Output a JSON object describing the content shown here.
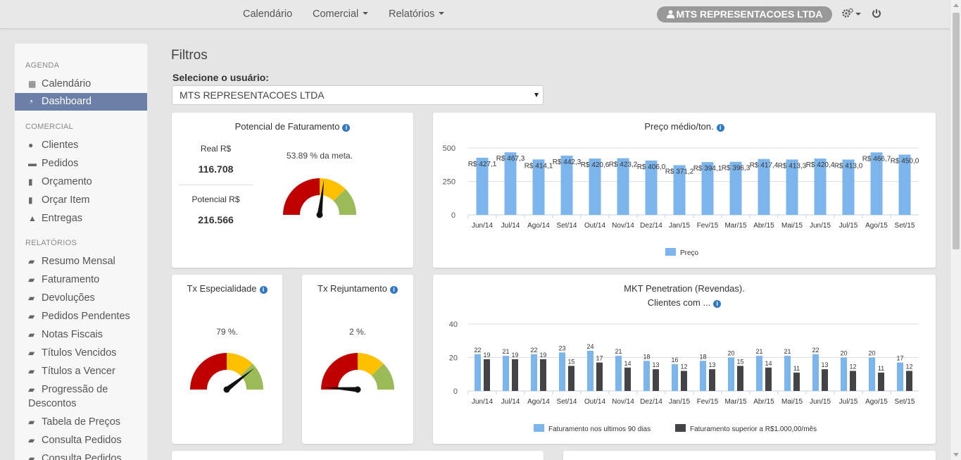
{
  "topbar": {
    "nav": [
      "Calendário",
      "Comercial",
      "Relatórios"
    ],
    "user": "MTS REPRESENTACOES LTDA",
    "icons": [
      "gears-icon",
      "power-icon"
    ]
  },
  "sidebar": {
    "sections": [
      {
        "title": "AGENDA",
        "items": [
          {
            "label": "Calendário",
            "icon": "calendar-icon"
          },
          {
            "label": "Dashboard",
            "icon": "dashboard-icon",
            "active": true
          }
        ]
      },
      {
        "title": "COMERCIAL",
        "items": [
          {
            "label": "Clientes",
            "icon": "user-icon"
          },
          {
            "label": "Pedidos",
            "icon": "cart-icon"
          },
          {
            "label": "Orçamento",
            "icon": "file-icon"
          },
          {
            "label": "Orçar Item",
            "icon": "file-icon"
          },
          {
            "label": "Entregas",
            "icon": "road-icon"
          }
        ]
      },
      {
        "title": "RELATÓRIOS",
        "items": [
          {
            "label": "Resumo Mensal",
            "icon": "book-icon"
          },
          {
            "label": "Faturamento",
            "icon": "book-icon"
          },
          {
            "label": "Devoluções",
            "icon": "book-icon"
          },
          {
            "label": "Pedidos Pendentes",
            "icon": "book-icon"
          },
          {
            "label": "Notas Fiscais",
            "icon": "book-icon"
          },
          {
            "label": "Títulos Vencidos",
            "icon": "book-icon"
          },
          {
            "label": "Títulos a Vencer",
            "icon": "book-icon"
          },
          {
            "label": "Progressão de Descontos",
            "icon": "book-icon"
          },
          {
            "label": "Tabela de Preços",
            "icon": "book-icon"
          },
          {
            "label": "Consulta Pedidos",
            "icon": "book-icon"
          },
          {
            "label": "Consulta Pedidos",
            "icon": "book-icon"
          }
        ]
      }
    ]
  },
  "main": {
    "title": "Filtros",
    "select_label": "Selecione o usuário:",
    "select_value": "MTS REPRESENTACOES LTDA"
  },
  "potencial": {
    "title": "Potencial de Faturamento",
    "real_label": "Real R$",
    "real_value": "116.708",
    "potencial_label": "Potencial R$",
    "potencial_value": "216.566",
    "meta_text": "53.89 % da meta.",
    "gauge_value": 53.89
  },
  "especialidade": {
    "title": "Tx Especialidade",
    "pct_text": "79 %.",
    "gauge_value": 79
  },
  "rejuntamento": {
    "title": "Tx Rejuntamento",
    "pct_text": "2 %.",
    "gauge_value": 2
  },
  "colors": {
    "bar_blue": "#7cb5ec",
    "bar_dark": "#434348",
    "gauge_red": "#c00000",
    "gauge_yellow": "#ffc000",
    "gauge_green": "#9bbb59"
  },
  "chart_data": [
    {
      "type": "bar",
      "title": "Preço médio/ton.",
      "categories": [
        "Jun/14",
        "Jul/14",
        "Ago/14",
        "Set/14",
        "Out/14",
        "Nov/14",
        "Dez/14",
        "Jan/15",
        "Fev/15",
        "Mar/15",
        "Abr/15",
        "Mai/15",
        "Jun/15",
        "Jul/15",
        "Ago/15",
        "Set/15"
      ],
      "series": [
        {
          "name": "Preço",
          "values": [
            427.1,
            467.3,
            414.1,
            442.3,
            420.6,
            423.2,
            406.0,
            371.2,
            394.1,
            396.3,
            417.4,
            413.3,
            420.4,
            413.0,
            466.7,
            450.0
          ]
        }
      ],
      "labels": [
        "R$ 427,1",
        "R$ 467,3",
        "R$ 414,1",
        "R$ 442,3",
        "R$ 420,6",
        "R$ 423,2",
        "R$ 406,0",
        "R$ 371,2",
        "R$ 394,1",
        "R$ 396,3",
        "R$ 417,4",
        "R$ 413,3",
        "R$ 420,4",
        "R$ 413,0",
        "R$ 466,7",
        "R$ 450,0"
      ],
      "yticks": [
        0,
        250,
        500
      ],
      "ylim": [
        0,
        500
      ],
      "grid": true,
      "legend": "bottom"
    },
    {
      "type": "bar",
      "title": "MKT Penetration (Revendas).",
      "subtitle": "Clientes com ...",
      "categories": [
        "Jun/14",
        "Jul/14",
        "Ago/14",
        "Set/14",
        "Out/14",
        "Nov/14",
        "Dez/14",
        "Jan/15",
        "Fev/15",
        "Mar/15",
        "Abr/15",
        "Mai/15",
        "Jun/15",
        "Jul/15",
        "Ago/15",
        "Set/15"
      ],
      "series": [
        {
          "name": "Faturamento nos ultimos 90 dias",
          "values": [
            22,
            21,
            22,
            23,
            24,
            21,
            18,
            16,
            18,
            20,
            21,
            21,
            22,
            20,
            20,
            17
          ]
        },
        {
          "name": "Faturamento superior a R$1.000,00/mês",
          "values": [
            19,
            19,
            19,
            15,
            17,
            14,
            13,
            12,
            13,
            15,
            14,
            11,
            13,
            12,
            11,
            12
          ]
        }
      ],
      "yticks": [
        0,
        20,
        40
      ],
      "ylim": [
        0,
        40
      ],
      "grid": true,
      "legend": "bottom"
    }
  ]
}
